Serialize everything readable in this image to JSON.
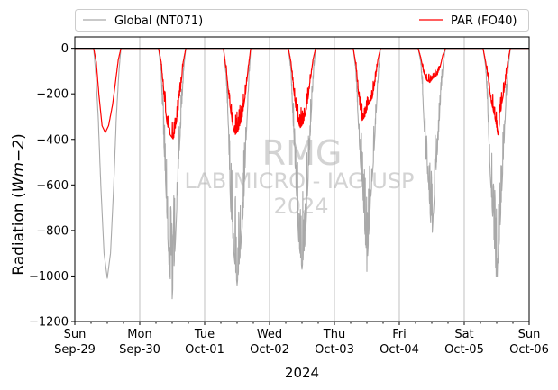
{
  "chart_data": {
    "type": "line",
    "xlabel": "2024",
    "ylabel_text": "Radiation (",
    "ylabel_math": "Wm−2",
    "ylabel_close": ")",
    "ylim": [
      -1200,
      50
    ],
    "yticks": [
      0,
      -200,
      -400,
      -600,
      -800,
      -1000,
      -1200
    ],
    "ytick_labels": [
      "0",
      "−200",
      "−400",
      "−600",
      "−800",
      "−1000",
      "−1200"
    ],
    "xlim_days": [
      0,
      7
    ],
    "day_ticks": [
      {
        "day": "Sun",
        "date": "Sep-29"
      },
      {
        "day": "Mon",
        "date": "Sep-30"
      },
      {
        "day": "Tue",
        "date": "Oct-01"
      },
      {
        "day": "Wed",
        "date": "Oct-02"
      },
      {
        "day": "Thu",
        "date": "Oct-03"
      },
      {
        "day": "Fri",
        "date": "Oct-04"
      },
      {
        "day": "Sat",
        "date": "Oct-05"
      },
      {
        "day": "Sun",
        "date": "Oct-06"
      }
    ],
    "grid": "vertical at day ticks",
    "zero_line": true,
    "legend": {
      "position": "top",
      "columns": 2
    },
    "watermark": [
      "RMG",
      "LAB MICRO - IAG USP",
      "2024"
    ],
    "series": [
      {
        "name": "Global (NT071)",
        "color": "#a9a9a9",
        "daily_minima": [
          -1010,
          -1100,
          -1040,
          -970,
          -980,
          -850,
          -1045
        ],
        "daily_curves": [
          [
            [
              0.29,
              0
            ],
            [
              0.32,
              -100
            ],
            [
              0.36,
              -300
            ],
            [
              0.4,
              -600
            ],
            [
              0.45,
              -900
            ],
            [
              0.5,
              -1010
            ],
            [
              0.55,
              -900
            ],
            [
              0.6,
              -600
            ],
            [
              0.64,
              -300
            ],
            [
              0.68,
              -100
            ],
            [
              0.71,
              0
            ]
          ],
          [
            [
              0.29,
              0
            ],
            [
              0.33,
              -100
            ],
            [
              0.36,
              -350
            ],
            [
              0.4,
              -600
            ],
            [
              0.45,
              -950
            ],
            [
              0.5,
              -1100
            ],
            [
              0.55,
              -850
            ],
            [
              0.6,
              -500
            ],
            [
              0.64,
              -300
            ],
            [
              0.68,
              -80
            ],
            [
              0.71,
              0
            ]
          ],
          [
            [
              0.29,
              0
            ],
            [
              0.33,
              -120
            ],
            [
              0.36,
              -300
            ],
            [
              0.4,
              -700
            ],
            [
              0.45,
              -900
            ],
            [
              0.5,
              -1040
            ],
            [
              0.55,
              -900
            ],
            [
              0.6,
              -700
            ],
            [
              0.64,
              -400
            ],
            [
              0.68,
              -150
            ],
            [
              0.71,
              0
            ]
          ],
          [
            [
              0.29,
              0
            ],
            [
              0.33,
              -100
            ],
            [
              0.36,
              -300
            ],
            [
              0.4,
              -550
            ],
            [
              0.45,
              -850
            ],
            [
              0.5,
              -970
            ],
            [
              0.55,
              -850
            ],
            [
              0.6,
              -550
            ],
            [
              0.64,
              -300
            ],
            [
              0.68,
              -100
            ],
            [
              0.71,
              0
            ]
          ],
          [
            [
              0.29,
              0
            ],
            [
              0.33,
              -100
            ],
            [
              0.36,
              -280
            ],
            [
              0.4,
              -500
            ],
            [
              0.45,
              -700
            ],
            [
              0.5,
              -980
            ],
            [
              0.55,
              -700
            ],
            [
              0.6,
              -500
            ],
            [
              0.64,
              -300
            ],
            [
              0.68,
              -100
            ],
            [
              0.71,
              0
            ]
          ],
          [
            [
              0.29,
              0
            ],
            [
              0.33,
              -60
            ],
            [
              0.36,
              -200
            ],
            [
              0.4,
              -450
            ],
            [
              0.45,
              -600
            ],
            [
              0.5,
              -850
            ],
            [
              0.55,
              -600
            ],
            [
              0.6,
              -400
            ],
            [
              0.64,
              -200
            ],
            [
              0.68,
              -60
            ],
            [
              0.71,
              0
            ]
          ],
          [
            [
              0.29,
              0
            ],
            [
              0.33,
              -80
            ],
            [
              0.36,
              -250
            ],
            [
              0.4,
              -550
            ],
            [
              0.45,
              -800
            ],
            [
              0.5,
              -1045
            ],
            [
              0.55,
              -800
            ],
            [
              0.6,
              -500
            ],
            [
              0.64,
              -250
            ],
            [
              0.68,
              -80
            ],
            [
              0.71,
              0
            ]
          ]
        ]
      },
      {
        "name": "PAR (FO40)",
        "color": "#ff0000",
        "daily_minima": [
          -370,
          -400,
          -380,
          -350,
          -320,
          -150,
          -380
        ],
        "daily_curves": [
          [
            [
              0.29,
              0
            ],
            [
              0.33,
              -60
            ],
            [
              0.37,
              -200
            ],
            [
              0.42,
              -340
            ],
            [
              0.47,
              -370
            ],
            [
              0.52,
              -340
            ],
            [
              0.58,
              -250
            ],
            [
              0.63,
              -140
            ],
            [
              0.67,
              -50
            ],
            [
              0.71,
              0
            ]
          ],
          [
            [
              0.29,
              0
            ],
            [
              0.33,
              -60
            ],
            [
              0.37,
              -200
            ],
            [
              0.42,
              -330
            ],
            [
              0.47,
              -380
            ],
            [
              0.52,
              -400
            ],
            [
              0.58,
              -300
            ],
            [
              0.63,
              -180
            ],
            [
              0.67,
              -60
            ],
            [
              0.71,
              0
            ]
          ],
          [
            [
              0.29,
              0
            ],
            [
              0.33,
              -90
            ],
            [
              0.37,
              -200
            ],
            [
              0.42,
              -320
            ],
            [
              0.47,
              -380
            ],
            [
              0.52,
              -360
            ],
            [
              0.58,
              -300
            ],
            [
              0.63,
              -200
            ],
            [
              0.67,
              -90
            ],
            [
              0.71,
              0
            ]
          ],
          [
            [
              0.29,
              0
            ],
            [
              0.33,
              -60
            ],
            [
              0.37,
              -180
            ],
            [
              0.42,
              -300
            ],
            [
              0.47,
              -350
            ],
            [
              0.52,
              -330
            ],
            [
              0.58,
              -250
            ],
            [
              0.63,
              -140
            ],
            [
              0.67,
              -50
            ],
            [
              0.71,
              0
            ]
          ],
          [
            [
              0.29,
              0
            ],
            [
              0.33,
              -70
            ],
            [
              0.37,
              -200
            ],
            [
              0.42,
              -320
            ],
            [
              0.47,
              -300
            ],
            [
              0.52,
              -250
            ],
            [
              0.58,
              -220
            ],
            [
              0.63,
              -140
            ],
            [
              0.67,
              -50
            ],
            [
              0.71,
              0
            ]
          ],
          [
            [
              0.29,
              0
            ],
            [
              0.33,
              -40
            ],
            [
              0.37,
              -100
            ],
            [
              0.42,
              -140
            ],
            [
              0.47,
              -150
            ],
            [
              0.52,
              -130
            ],
            [
              0.58,
              -120
            ],
            [
              0.63,
              -80
            ],
            [
              0.67,
              -30
            ],
            [
              0.71,
              0
            ]
          ],
          [
            [
              0.29,
              0
            ],
            [
              0.33,
              -60
            ],
            [
              0.37,
              -140
            ],
            [
              0.42,
              -240
            ],
            [
              0.47,
              -300
            ],
            [
              0.52,
              -380
            ],
            [
              0.58,
              -240
            ],
            [
              0.63,
              -160
            ],
            [
              0.67,
              -60
            ],
            [
              0.71,
              0
            ]
          ]
        ]
      }
    ]
  }
}
